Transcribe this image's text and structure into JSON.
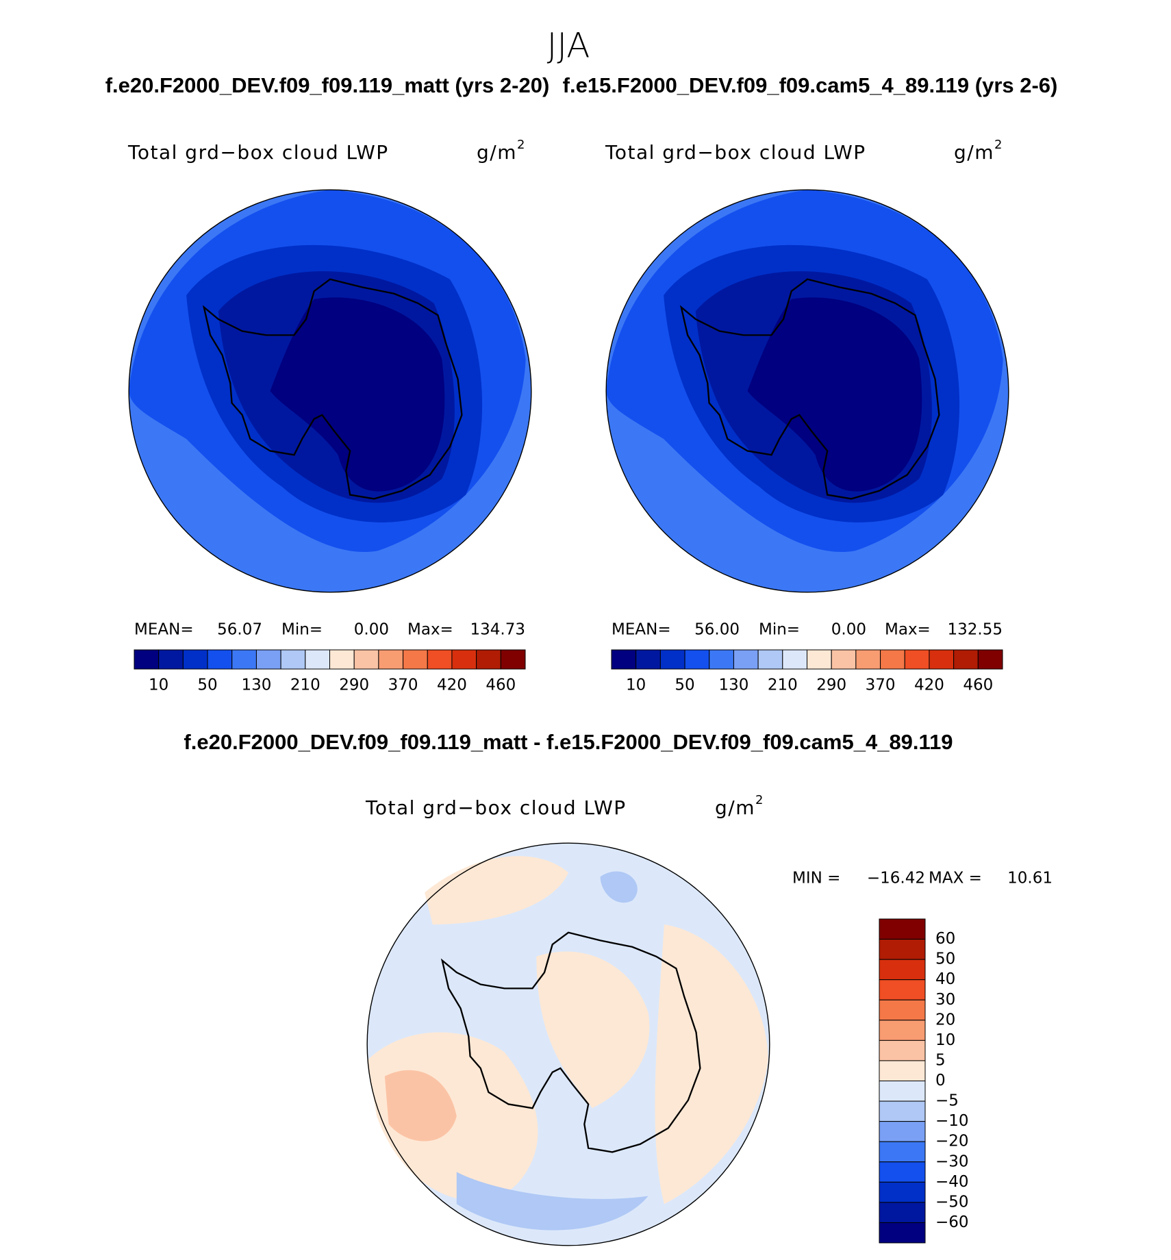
{
  "title": "JJA",
  "panels": [
    {
      "case": "f.e20.F2000_DEV.f09_f09.119_matt (yrs 2-20)",
      "field": "Total grd−box cloud LWP",
      "units": "g/m",
      "units_power": "2",
      "stats": [
        {
          "label": "MEAN=",
          "value": "56.07"
        },
        {
          "label": "Min=",
          "value": "0.00"
        },
        {
          "label": "Max=",
          "value": "134.73"
        }
      ],
      "colorbar": {
        "labels": [
          "10",
          "50",
          "130",
          "210",
          "290",
          "370",
          "420",
          "460"
        ],
        "colors": [
          "#000080",
          "#0018a0",
          "#0030c8",
          "#1450ee",
          "#3c78f5",
          "#7aa0f5",
          "#afc8f5",
          "#dce8fa",
          "#fde8d5",
          "#fbc3a5",
          "#f89c72",
          "#f47848",
          "#f04e24",
          "#d8300e",
          "#b01c04",
          "#800000"
        ]
      }
    },
    {
      "case": "f.e15.F2000_DEV.f09_f09.cam5_4_89.119 (yrs 2-6)",
      "field": "Total grd−box cloud LWP",
      "units": "g/m",
      "units_power": "2",
      "stats": [
        {
          "label": "MEAN=",
          "value": "56.00"
        },
        {
          "label": "Min=",
          "value": "0.00"
        },
        {
          "label": "Max=",
          "value": "132.55"
        }
      ],
      "colorbar": {
        "labels": [
          "10",
          "50",
          "130",
          "210",
          "290",
          "370",
          "420",
          "460"
        ],
        "colors": [
          "#000080",
          "#0018a0",
          "#0030c8",
          "#1450ee",
          "#3c78f5",
          "#7aa0f5",
          "#afc8f5",
          "#dce8fa",
          "#fde8d5",
          "#fbc3a5",
          "#f89c72",
          "#f47848",
          "#f04e24",
          "#d8300e",
          "#b01c04",
          "#800000"
        ]
      }
    }
  ],
  "difference": {
    "case": "f.e20.F2000_DEV.f09_f09.119_matt - f.e15.F2000_DEV.f09_f09.cam5_4_89.119",
    "field": "Total grd−box cloud LWP",
    "units": "g/m",
    "units_power": "2",
    "stats": [
      {
        "label": "MIN =",
        "value": "−16.42"
      },
      {
        "label": "MAX =",
        "value": "10.61"
      }
    ],
    "colorbar": {
      "labels": [
        "60",
        "50",
        "40",
        "30",
        "20",
        "10",
        "5",
        "0",
        "−5",
        "−10",
        "−20",
        "−30",
        "−40",
        "−50",
        "−60"
      ],
      "colors": [
        "#800000",
        "#b01c04",
        "#d8300e",
        "#f04e24",
        "#f47848",
        "#f89c72",
        "#fbc3a5",
        "#fde8d5",
        "#dce8fa",
        "#afc8f5",
        "#7aa0f5",
        "#3c78f5",
        "#1450ee",
        "#0030c8",
        "#0018a0",
        "#000080"
      ]
    }
  }
}
